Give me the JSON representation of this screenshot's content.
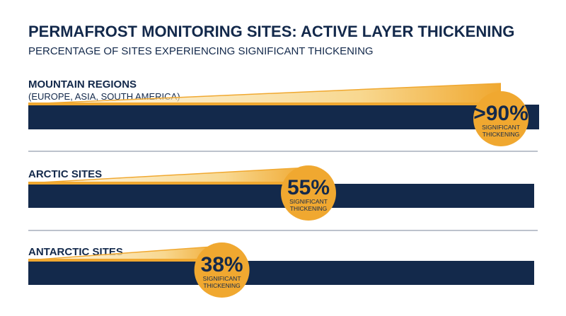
{
  "chart_data": {
    "type": "bar",
    "title": "PERMAFROST MONITORING SITES: ACTIVE LAYER THICKENING",
    "subtitle": "PERCENTAGE OF SITES EXPERIENCING SIGNIFICANT THICKENING",
    "categories": [
      {
        "name": "MOUNTAIN REGIONS",
        "sub": "(EUROPE, ASIA, SOUTH AMERICA)"
      },
      {
        "name": "ARCTIC SITES",
        "sub": ""
      },
      {
        "name": "ANTARCTIC SITES",
        "sub": ""
      }
    ],
    "values": [
      90,
      55,
      38
    ],
    "value_labels": [
      ">90%",
      "55%",
      "38%"
    ],
    "value_caption": [
      "SIGNIFICANT",
      "THICKENING"
    ],
    "value_unit": "%",
    "xlim": [
      0,
      100
    ],
    "colors": {
      "bar": "#13294b",
      "accent": "#f0a830",
      "accent_light": "#fbe7b8",
      "text": "#13294b",
      "divider": "#7a8598"
    }
  }
}
